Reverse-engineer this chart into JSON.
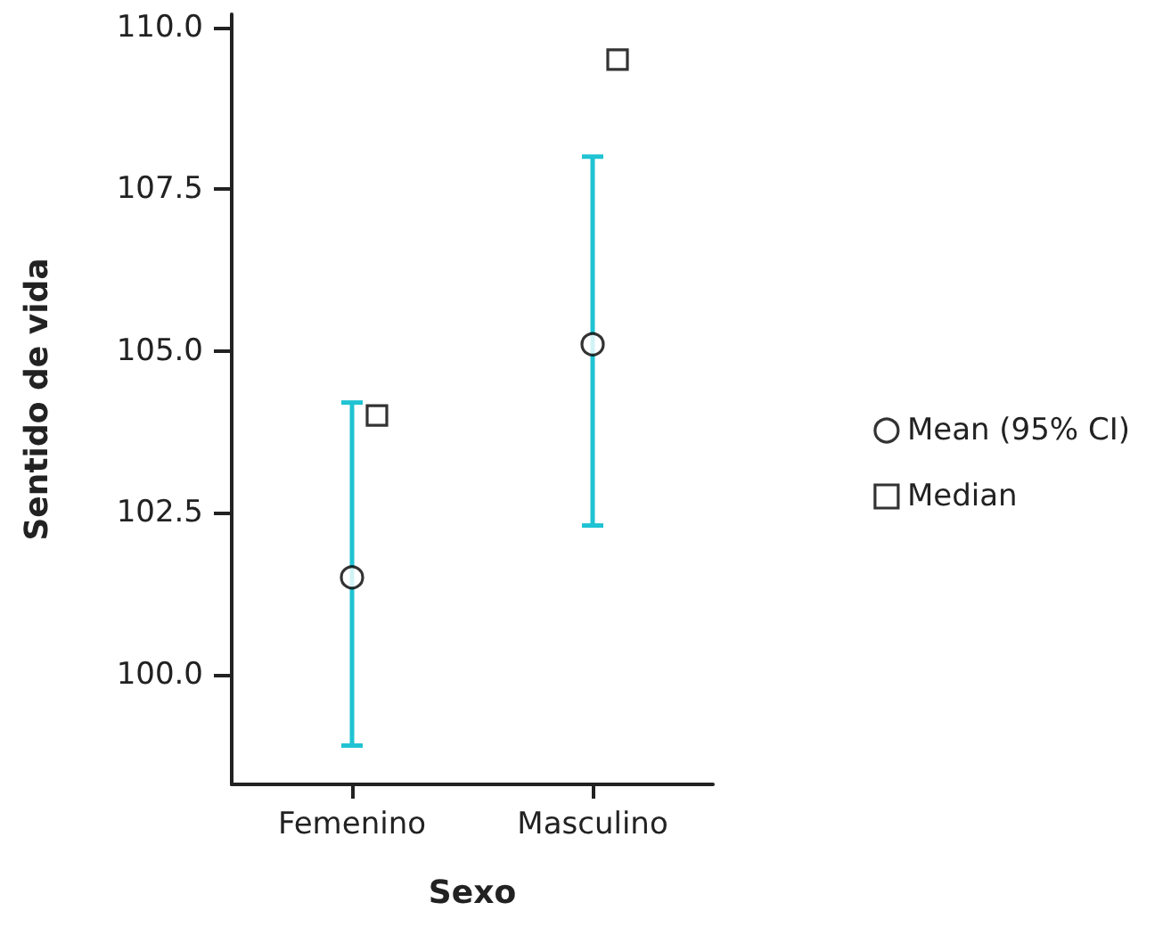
{
  "chart_data": {
    "type": "scatter",
    "xlabel": "Sexo",
    "ylabel": "Sentido de vida",
    "categories": [
      "Femenino",
      "Masculino"
    ],
    "series": [
      {
        "name": "Mean (95% CI)",
        "color": "#000000",
        "marker": "circle",
        "values": [
          101.5,
          105.1
        ],
        "errors": [
          [
            98.9,
            104.2
          ],
          [
            102.3,
            108.0
          ]
        ]
      },
      {
        "name": "Median",
        "color": "#000000",
        "marker": "square",
        "x": [
          "Femenino",
          "Masculino"
        ],
        "values": [
          104.0,
          109.5
        ]
      }
    ],
    "ylim": [
      98.3,
      110.2
    ],
    "yticks": [
      {
        "value": 100,
        "label": "100.0"
      },
      {
        "value": 102.5,
        "label": "102.5"
      },
      {
        "value": 105,
        "label": "105.0"
      },
      {
        "value": 107.5,
        "label": "107.5"
      },
      {
        "value": 110,
        "label": "110.0"
      }
    ],
    "grid": false,
    "legend": "right"
  }
}
